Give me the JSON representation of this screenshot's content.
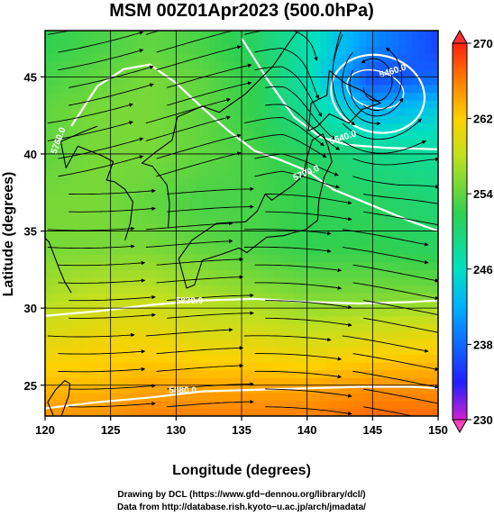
{
  "chart_data": {
    "type": "heatmap",
    "title": "MSM 00Z01Apr2023 (500.0hPa)",
    "xlabel": "Longitude (degrees)",
    "ylabel": "Latitude  (degrees)",
    "xlim": [
      120,
      150
    ],
    "ylim": [
      23,
      48
    ],
    "xticks": [
      120,
      125,
      130,
      135,
      140,
      145,
      150
    ],
    "yticks": [
      25,
      30,
      35,
      40,
      45
    ],
    "colorbar": {
      "min": 230,
      "max": 270,
      "ticks": [
        230,
        238,
        246,
        254,
        262,
        270
      ],
      "extend": "both"
    },
    "contour_labels": [
      "5460.0",
      "5640.0",
      "5700.0",
      "5760.0",
      "5820.0",
      "5880.0"
    ],
    "overlay": "wind streamlines with arrows",
    "temperature_field_K": [
      {
        "lat": 47,
        "values": [
          252,
          253,
          254,
          253,
          251,
          247,
          240,
          236
        ]
      },
      {
        "lat": 45,
        "values": [
          253,
          254,
          255,
          254,
          252,
          247,
          236,
          238
        ]
      },
      {
        "lat": 43,
        "values": [
          254,
          255,
          255,
          254,
          252,
          248,
          242,
          244
        ]
      },
      {
        "lat": 40,
        "values": [
          254,
          255,
          255,
          254,
          253,
          251,
          249,
          248
        ]
      },
      {
        "lat": 37,
        "values": [
          255,
          255,
          254,
          253,
          253,
          252,
          251,
          250
        ]
      },
      {
        "lat": 34,
        "values": [
          255,
          255,
          255,
          254,
          253,
          252,
          252,
          251
        ]
      },
      {
        "lat": 31,
        "values": [
          257,
          258,
          258,
          257,
          256,
          255,
          255,
          255
        ]
      },
      {
        "lat": 28,
        "values": [
          260,
          261,
          261,
          260,
          260,
          259,
          260,
          261
        ]
      },
      {
        "lat": 25,
        "values": [
          263,
          263,
          264,
          264,
          264,
          264,
          265,
          265
        ]
      },
      {
        "lat": 23,
        "values": [
          265,
          265,
          266,
          266,
          266,
          266,
          267,
          267
        ]
      }
    ],
    "field_lons": [
      120,
      124,
      128,
      132,
      136,
      140,
      145,
      150
    ]
  },
  "credits": {
    "line1": "Drawing by DCL (https://www.gfd−dennou.org/library/dcl/)",
    "line2": "Data from http://database.rish.kyoto−u.ac.jp/arch/jmadata/"
  }
}
